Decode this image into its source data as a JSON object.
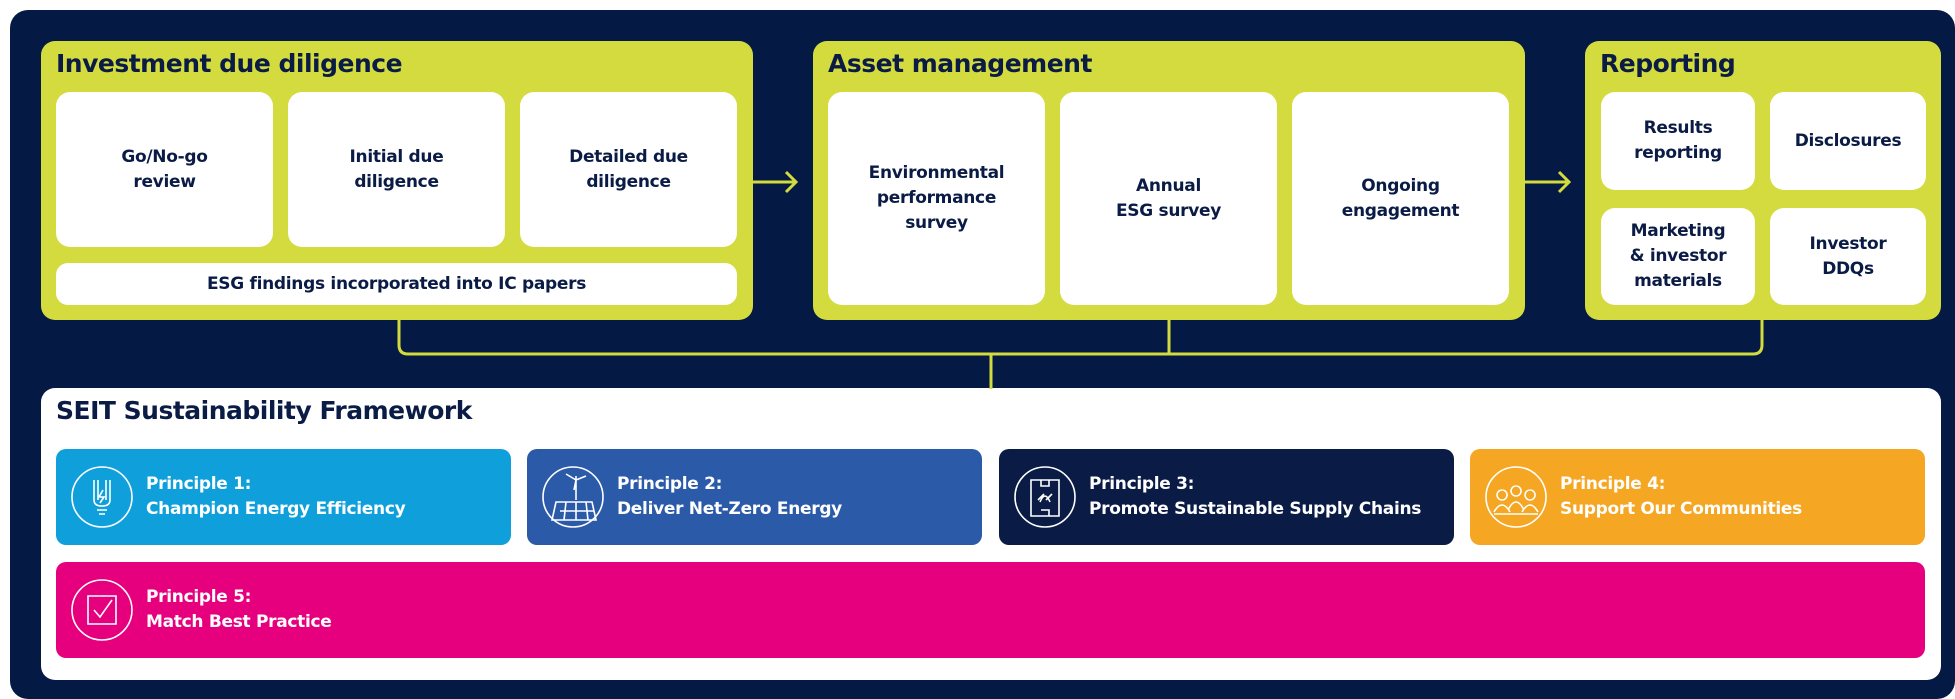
{
  "sections": [
    {
      "title": "Investment due diligence",
      "cards": [
        {
          "lines": [
            "Go/No-go",
            "review"
          ]
        },
        {
          "lines": [
            "Initial due",
            "diligence"
          ]
        },
        {
          "lines": [
            "Detailed due",
            "diligence"
          ]
        }
      ],
      "footer": "ESG findings incorporated into IC papers"
    },
    {
      "title": "Asset management",
      "cards": [
        {
          "lines": [
            "Environmental",
            "performance",
            "survey"
          ]
        },
        {
          "lines": [
            "Annual",
            "ESG survey"
          ]
        },
        {
          "lines": [
            "Ongoing",
            "engagement"
          ]
        }
      ]
    },
    {
      "title": "Reporting",
      "cards": [
        {
          "lines": [
            "Results",
            "reporting"
          ]
        },
        {
          "lines": [
            "Disclosures"
          ]
        },
        {
          "lines": [
            "Marketing",
            "& investor",
            "materials"
          ]
        },
        {
          "lines": [
            "Investor",
            "DDQs"
          ]
        }
      ]
    }
  ],
  "framework": {
    "title": "SEIT Sustainability Framework",
    "principles": [
      {
        "label": "Principle 1:",
        "name": "Champion Energy Efficiency"
      },
      {
        "label": "Principle 2:",
        "name": "Deliver Net-Zero Energy"
      },
      {
        "label": "Principle 3:",
        "name": "Promote Sustainable Supply Chains"
      },
      {
        "label": "Principle 4:",
        "name": "Support Our Communities"
      },
      {
        "label": "Principle 5:",
        "name": "Match Best Practice"
      }
    ]
  }
}
